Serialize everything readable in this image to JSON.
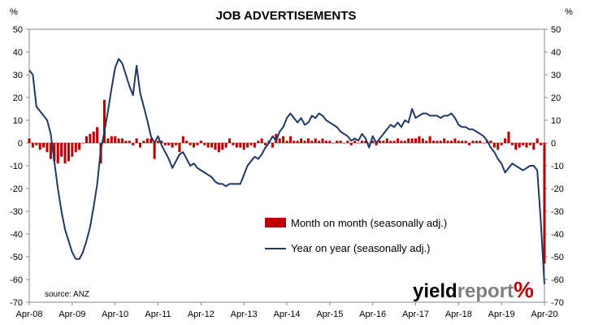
{
  "chart_data": {
    "type": "bar+line",
    "title": "JOB ADVERTISEMENTS",
    "left_axis_unit": "%",
    "right_axis_unit": "%",
    "ylim": [
      -70,
      50
    ],
    "yticks": [
      50,
      40,
      30,
      20,
      10,
      0,
      -10,
      -20,
      -30,
      -40,
      -50,
      -60,
      -70
    ],
    "x_tick_labels": [
      "Apr-08",
      "Apr-09",
      "Apr-10",
      "Apr-11",
      "Apr-12",
      "Apr-13",
      "Apr-14",
      "Apr-15",
      "Apr-16",
      "Apr-17",
      "Apr-18",
      "Apr-19",
      "Apr-20"
    ],
    "x_range": [
      "2008-04",
      "2020-04"
    ],
    "legend_placement": "center-right, inside plot",
    "grid": false,
    "source": "source: ANZ",
    "bar_color": "#c00000",
    "line_color": "#1f3864",
    "series": [
      {
        "name": "Month on month (seasonally adj.)",
        "type": "bar",
        "points": [
          [
            "2008-04",
            2
          ],
          [
            "2008-05",
            -2
          ],
          [
            "2008-06",
            -1
          ],
          [
            "2008-07",
            -3
          ],
          [
            "2008-08",
            -2
          ],
          [
            "2008-09",
            -4
          ],
          [
            "2008-10",
            -7
          ],
          [
            "2008-11",
            -8
          ],
          [
            "2008-12",
            -9
          ],
          [
            "2009-01",
            -6
          ],
          [
            "2009-02",
            -9
          ],
          [
            "2009-03",
            -8
          ],
          [
            "2009-04",
            -6
          ],
          [
            "2009-05",
            -4
          ],
          [
            "2009-06",
            -3
          ],
          [
            "2009-07",
            0
          ],
          [
            "2009-08",
            3
          ],
          [
            "2009-09",
            4
          ],
          [
            "2009-10",
            5
          ],
          [
            "2009-11",
            7
          ],
          [
            "2009-12",
            -9
          ],
          [
            "2010-01",
            19
          ],
          [
            "2010-02",
            2
          ],
          [
            "2010-03",
            3
          ],
          [
            "2010-04",
            3
          ],
          [
            "2010-05",
            2
          ],
          [
            "2010-06",
            2
          ],
          [
            "2010-07",
            1
          ],
          [
            "2010-08",
            1
          ],
          [
            "2010-09",
            -1
          ],
          [
            "2010-10",
            2
          ],
          [
            "2010-11",
            -2
          ],
          [
            "2010-12",
            1
          ],
          [
            "2011-01",
            2
          ],
          [
            "2011-02",
            2
          ],
          [
            "2011-03",
            -7
          ],
          [
            "2011-04",
            1
          ],
          [
            "2011-05",
            1
          ],
          [
            "2011-06",
            -1
          ],
          [
            "2011-07",
            -1
          ],
          [
            "2011-08",
            -2
          ],
          [
            "2011-09",
            -1
          ],
          [
            "2011-10",
            -4
          ],
          [
            "2011-11",
            3
          ],
          [
            "2011-12",
            1
          ],
          [
            "2012-01",
            -1
          ],
          [
            "2012-02",
            -2
          ],
          [
            "2012-03",
            -1
          ],
          [
            "2012-04",
            1
          ],
          [
            "2012-05",
            -1
          ],
          [
            "2012-06",
            -2
          ],
          [
            "2012-07",
            -2
          ],
          [
            "2012-08",
            -3
          ],
          [
            "2012-09",
            -4
          ],
          [
            "2012-10",
            -3
          ],
          [
            "2012-11",
            -2
          ],
          [
            "2012-12",
            2
          ],
          [
            "2013-01",
            -1
          ],
          [
            "2013-02",
            -2
          ],
          [
            "2013-03",
            -2
          ],
          [
            "2013-04",
            -3
          ],
          [
            "2013-05",
            -2
          ],
          [
            "2013-06",
            -1
          ],
          [
            "2013-07",
            -2
          ],
          [
            "2013-08",
            1
          ],
          [
            "2013-09",
            2
          ],
          [
            "2013-10",
            -1
          ],
          [
            "2013-11",
            1
          ],
          [
            "2013-12",
            -2
          ],
          [
            "2014-01",
            4
          ],
          [
            "2014-02",
            2
          ],
          [
            "2014-03",
            3
          ],
          [
            "2014-04",
            1
          ],
          [
            "2014-05",
            3
          ],
          [
            "2014-06",
            1
          ],
          [
            "2014-07",
            1
          ],
          [
            "2014-08",
            2
          ],
          [
            "2014-09",
            1
          ],
          [
            "2014-10",
            2
          ],
          [
            "2014-11",
            1
          ],
          [
            "2014-12",
            2
          ],
          [
            "2015-01",
            1
          ],
          [
            "2015-02",
            2
          ],
          [
            "2015-03",
            1
          ],
          [
            "2015-04",
            1
          ],
          [
            "2015-05",
            0
          ],
          [
            "2015-06",
            1
          ],
          [
            "2015-07",
            1
          ],
          [
            "2015-08",
            0
          ],
          [
            "2015-09",
            1
          ],
          [
            "2015-10",
            -1
          ],
          [
            "2015-11",
            1
          ],
          [
            "2015-12",
            0
          ],
          [
            "2016-01",
            1
          ],
          [
            "2016-02",
            1
          ],
          [
            "2016-03",
            0
          ],
          [
            "2016-04",
            1
          ],
          [
            "2016-05",
            -1
          ],
          [
            "2016-06",
            1
          ],
          [
            "2016-07",
            1
          ],
          [
            "2016-08",
            2
          ],
          [
            "2016-09",
            1
          ],
          [
            "2016-10",
            1
          ],
          [
            "2016-11",
            2
          ],
          [
            "2016-12",
            1
          ],
          [
            "2017-01",
            1
          ],
          [
            "2017-02",
            2
          ],
          [
            "2017-03",
            2
          ],
          [
            "2017-04",
            2
          ],
          [
            "2017-05",
            3
          ],
          [
            "2017-06",
            2
          ],
          [
            "2017-07",
            1
          ],
          [
            "2017-08",
            3
          ],
          [
            "2017-09",
            1
          ],
          [
            "2017-10",
            1
          ],
          [
            "2017-11",
            1
          ],
          [
            "2017-12",
            2
          ],
          [
            "2018-01",
            1
          ],
          [
            "2018-02",
            1
          ],
          [
            "2018-03",
            2
          ],
          [
            "2018-04",
            1
          ],
          [
            "2018-05",
            1
          ],
          [
            "2018-06",
            1
          ],
          [
            "2018-07",
            -1
          ],
          [
            "2018-08",
            1
          ],
          [
            "2018-09",
            1
          ],
          [
            "2018-10",
            1
          ],
          [
            "2018-11",
            0
          ],
          [
            "2018-12",
            1
          ],
          [
            "2019-01",
            1
          ],
          [
            "2019-02",
            -2
          ],
          [
            "2019-03",
            -3
          ],
          [
            "2019-04",
            -1
          ],
          [
            "2019-05",
            2
          ],
          [
            "2019-06",
            5
          ],
          [
            "2019-07",
            -1
          ],
          [
            "2019-08",
            -3
          ],
          [
            "2019-09",
            -2
          ],
          [
            "2019-10",
            -1
          ],
          [
            "2019-11",
            -2
          ],
          [
            "2019-12",
            -1
          ],
          [
            "2020-01",
            -3
          ],
          [
            "2020-02",
            2
          ],
          [
            "2020-03",
            -1
          ],
          [
            "2020-04",
            -53
          ]
        ]
      },
      {
        "name": "Year on year (seasonally adj.)",
        "type": "line",
        "points": [
          [
            "2008-04",
            32
          ],
          [
            "2008-05",
            30
          ],
          [
            "2008-06",
            16
          ],
          [
            "2008-07",
            14
          ],
          [
            "2008-08",
            12
          ],
          [
            "2008-09",
            10
          ],
          [
            "2008-10",
            4
          ],
          [
            "2008-11",
            -8
          ],
          [
            "2008-12",
            -20
          ],
          [
            "2009-01",
            -30
          ],
          [
            "2009-02",
            -38
          ],
          [
            "2009-03",
            -43
          ],
          [
            "2009-04",
            -48
          ],
          [
            "2009-05",
            -51
          ],
          [
            "2009-06",
            -51
          ],
          [
            "2009-07",
            -48
          ],
          [
            "2009-08",
            -43
          ],
          [
            "2009-09",
            -37
          ],
          [
            "2009-10",
            -28
          ],
          [
            "2009-11",
            -18
          ],
          [
            "2009-12",
            -3
          ],
          [
            "2010-01",
            5
          ],
          [
            "2010-02",
            14
          ],
          [
            "2010-03",
            24
          ],
          [
            "2010-04",
            33
          ],
          [
            "2010-05",
            37
          ],
          [
            "2010-06",
            35
          ],
          [
            "2010-07",
            30
          ],
          [
            "2010-08",
            25
          ],
          [
            "2010-09",
            21
          ],
          [
            "2010-10",
            34
          ],
          [
            "2010-11",
            22
          ],
          [
            "2010-12",
            16
          ],
          [
            "2011-01",
            10
          ],
          [
            "2011-02",
            3
          ],
          [
            "2011-03",
            0
          ],
          [
            "2011-04",
            3
          ],
          [
            "2011-05",
            -1
          ],
          [
            "2011-06",
            -4
          ],
          [
            "2011-07",
            -7
          ],
          [
            "2011-08",
            -11
          ],
          [
            "2011-09",
            -8
          ],
          [
            "2011-10",
            -5
          ],
          [
            "2011-11",
            -4
          ],
          [
            "2011-12",
            -7
          ],
          [
            "2012-01",
            -10
          ],
          [
            "2012-02",
            -9
          ],
          [
            "2012-03",
            -11
          ],
          [
            "2012-04",
            -12
          ],
          [
            "2012-05",
            -13
          ],
          [
            "2012-06",
            -14
          ],
          [
            "2012-07",
            -15
          ],
          [
            "2012-08",
            -17
          ],
          [
            "2012-09",
            -18
          ],
          [
            "2012-10",
            -18
          ],
          [
            "2012-11",
            -19
          ],
          [
            "2012-12",
            -18
          ],
          [
            "2013-01",
            -18
          ],
          [
            "2013-02",
            -18
          ],
          [
            "2013-03",
            -18
          ],
          [
            "2013-04",
            -14
          ],
          [
            "2013-05",
            -10
          ],
          [
            "2013-06",
            -8
          ],
          [
            "2013-07",
            -6
          ],
          [
            "2013-08",
            -7
          ],
          [
            "2013-09",
            -5
          ],
          [
            "2013-10",
            -2
          ],
          [
            "2013-11",
            0
          ],
          [
            "2013-12",
            3
          ],
          [
            "2014-01",
            1
          ],
          [
            "2014-02",
            5
          ],
          [
            "2014-03",
            7
          ],
          [
            "2014-04",
            11
          ],
          [
            "2014-05",
            13
          ],
          [
            "2014-06",
            11
          ],
          [
            "2014-07",
            9
          ],
          [
            "2014-08",
            11
          ],
          [
            "2014-09",
            8
          ],
          [
            "2014-10",
            9
          ],
          [
            "2014-11",
            12
          ],
          [
            "2014-12",
            11
          ],
          [
            "2015-01",
            13
          ],
          [
            "2015-02",
            12
          ],
          [
            "2015-03",
            10
          ],
          [
            "2015-04",
            9
          ],
          [
            "2015-05",
            8
          ],
          [
            "2015-06",
            7
          ],
          [
            "2015-07",
            5
          ],
          [
            "2015-08",
            4
          ],
          [
            "2015-09",
            3
          ],
          [
            "2015-10",
            1
          ],
          [
            "2015-11",
            2
          ],
          [
            "2015-12",
            1
          ],
          [
            "2016-01",
            4
          ],
          [
            "2016-02",
            2
          ],
          [
            "2016-03",
            -2
          ],
          [
            "2016-04",
            3
          ],
          [
            "2016-05",
            0
          ],
          [
            "2016-06",
            2
          ],
          [
            "2016-07",
            4
          ],
          [
            "2016-08",
            6
          ],
          [
            "2016-09",
            8
          ],
          [
            "2016-10",
            7
          ],
          [
            "2016-11",
            9
          ],
          [
            "2016-12",
            7
          ],
          [
            "2017-01",
            10
          ],
          [
            "2017-02",
            9
          ],
          [
            "2017-03",
            15
          ],
          [
            "2017-04",
            11
          ],
          [
            "2017-05",
            12
          ],
          [
            "2017-06",
            13
          ],
          [
            "2017-07",
            13
          ],
          [
            "2017-08",
            12
          ],
          [
            "2017-09",
            12
          ],
          [
            "2017-10",
            12
          ],
          [
            "2017-11",
            11
          ],
          [
            "2017-12",
            12
          ],
          [
            "2018-01",
            12
          ],
          [
            "2018-02",
            13
          ],
          [
            "2018-03",
            11
          ],
          [
            "2018-04",
            8
          ],
          [
            "2018-05",
            7
          ],
          [
            "2018-06",
            7
          ],
          [
            "2018-07",
            6
          ],
          [
            "2018-08",
            6
          ],
          [
            "2018-09",
            5
          ],
          [
            "2018-10",
            4
          ],
          [
            "2018-11",
            3
          ],
          [
            "2018-12",
            1
          ],
          [
            "2019-01",
            -2
          ],
          [
            "2019-02",
            -4
          ],
          [
            "2019-03",
            -7
          ],
          [
            "2019-04",
            -9
          ],
          [
            "2019-05",
            -13
          ],
          [
            "2019-06",
            -11
          ],
          [
            "2019-07",
            -9
          ],
          [
            "2019-08",
            -10
          ],
          [
            "2019-09",
            -11
          ],
          [
            "2019-10",
            -12
          ],
          [
            "2019-11",
            -11
          ],
          [
            "2019-12",
            -10
          ],
          [
            "2020-01",
            -10
          ],
          [
            "2020-02",
            -12
          ],
          [
            "2020-03",
            -35
          ],
          [
            "2020-04",
            -62
          ]
        ]
      }
    ]
  },
  "logo": {
    "text_part1": "yield",
    "text_part2": "report",
    "symbol": "%",
    "color_dark": "#000000",
    "color_grey": "#7f7f7f",
    "color_red": "#c00000"
  }
}
